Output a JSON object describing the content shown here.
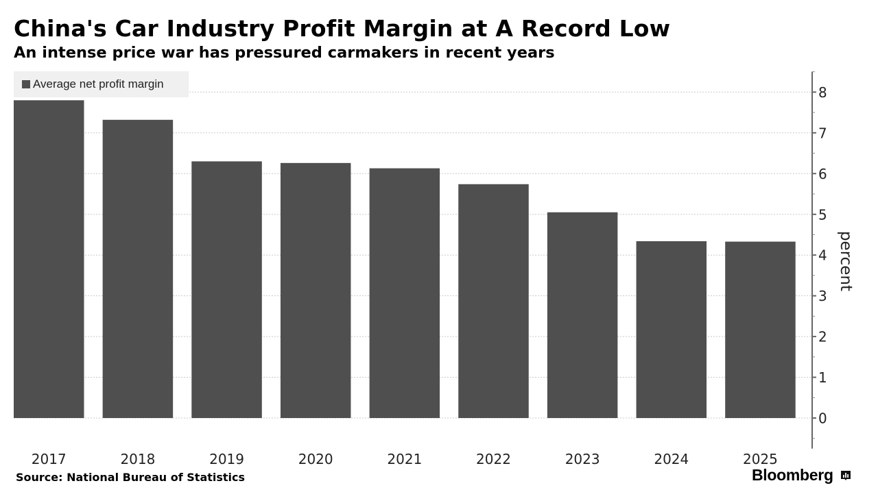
{
  "header": {
    "title": "China's Car Industry Profit Margin at A Record Low",
    "subtitle": "An intense price war has pressured carmakers in recent years"
  },
  "footer": {
    "source": "Source: National Bureau of Statistics",
    "brand": "Bloomberg",
    "brand_icon": "bloomberg-chart-icon"
  },
  "colors": {
    "bar": "#4f4f4f",
    "legend_bg": "#f0f0f0",
    "gridline": "#c8c8c8",
    "axis": "#666666"
  },
  "chart_data": {
    "type": "bar",
    "title": "China's Car Industry Profit Margin at A Record Low",
    "subtitle": "An intense price war has pressured carmakers in recent years",
    "categories": [
      "2017",
      "2018",
      "2019",
      "2020",
      "2021",
      "2022",
      "2023",
      "2024",
      "2025"
    ],
    "series": [
      {
        "name": "Average net profit margin",
        "values": [
          7.8,
          7.32,
          6.3,
          6.26,
          6.13,
          5.74,
          5.05,
          4.34,
          4.33
        ]
      }
    ],
    "xlabel": "",
    "ylabel": "percent",
    "ylim": [
      -0.75,
      8.5
    ],
    "yticks": [
      0,
      1,
      2,
      3,
      4,
      5,
      6,
      7,
      8
    ],
    "ytick_labels": [
      "0",
      "1",
      "2",
      "3",
      "4",
      "5",
      "6",
      "7",
      "8"
    ],
    "y_axis_side": "right",
    "grid": true,
    "legend": {
      "entries": [
        "Average net profit margin"
      ],
      "placement": "top-left"
    }
  }
}
